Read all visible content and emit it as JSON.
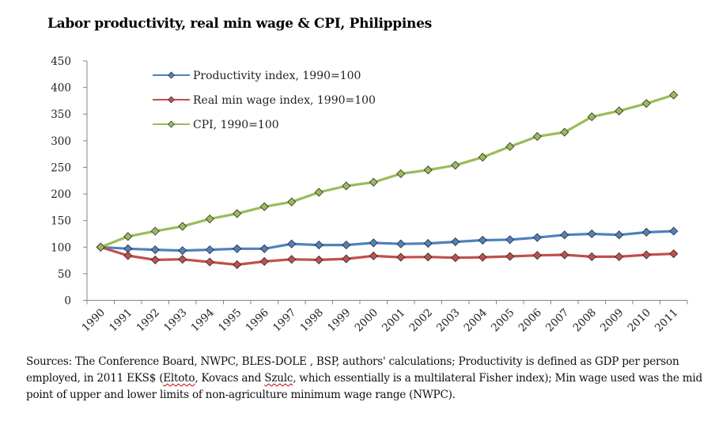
{
  "chart_data": {
    "type": "line",
    "title": "Labor productivity,  real min wage & CPI, Philippines",
    "xlabel": "",
    "ylabel": "",
    "x": [
      "1990",
      "1991",
      "1992",
      "1993",
      "1994",
      "1995",
      "1996",
      "1997",
      "1998",
      "1999",
      "2000",
      "2001",
      "2002",
      "2003",
      "2004",
      "2005",
      "2006",
      "2007",
      "2008",
      "2009",
      "2010",
      "2011"
    ],
    "ylim": [
      0,
      450
    ],
    "yticks": [
      0,
      50,
      100,
      150,
      200,
      250,
      300,
      350,
      400,
      450
    ],
    "grid": false,
    "legend_position": "top-left",
    "series": [
      {
        "name": "Productivity index, 1990=100",
        "color": "#4F81BD",
        "marker": "diamond",
        "values": [
          100,
          97,
          95,
          93.5,
          95,
          97,
          97,
          106,
          104,
          104,
          108,
          106,
          107,
          110,
          113,
          114,
          118,
          123,
          125,
          123,
          128,
          130
        ]
      },
      {
        "name": "Real min wage index, 1990=100",
        "color": "#C0504D",
        "marker": "diamond",
        "values": [
          100,
          84,
          76,
          77,
          72,
          67,
          73,
          77,
          76,
          78,
          83.5,
          81,
          81.5,
          80,
          81,
          82.5,
          84.5,
          85.5,
          82,
          82,
          85.5,
          87.5
        ]
      },
      {
        "name": "CPI, 1990=100",
        "color": "#9BBB59",
        "marker": "diamond",
        "values": [
          100,
          120,
          130,
          139,
          153,
          163,
          176,
          185,
          203,
          215,
          222,
          238,
          245,
          254,
          269,
          289,
          308,
          316,
          345,
          356,
          370,
          386
        ]
      }
    ]
  },
  "sources": {
    "prefix": "Sources: The Conference Board, NWPC, BLES-DOLE , BSP, authors' calculations; Productivity is defined as GDP per person employed, in 2011 EKS$ (",
    "name1": "Eltoto",
    "mid": ", Kovacs and ",
    "name2": "Szulc",
    "suffix": ", which essentially is a multilateral Fisher index); Min wage used was the mid point of upper  and lower limits of non-agriculture minimum wage range (NWPC)."
  }
}
